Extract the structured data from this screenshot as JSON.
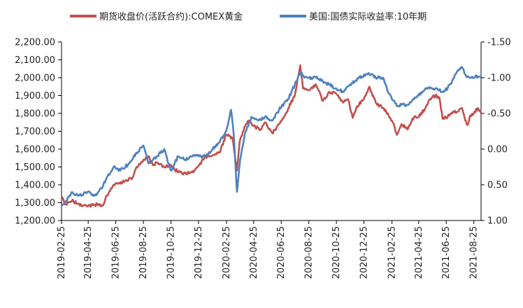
{
  "chart_data": {
    "type": "line",
    "title": "",
    "xlabel": "",
    "legend_position": "top-center",
    "grid": false,
    "x_range": [
      "2019-02-25",
      "2021-09-10"
    ],
    "x_ticks": [
      "2019-02-25",
      "2019-04-25",
      "2019-06-25",
      "2019-08-25",
      "2019-10-25",
      "2019-12-25",
      "2020-02-25",
      "2020-04-25",
      "2020-06-25",
      "2020-08-25",
      "2020-10-25",
      "2020-12-25",
      "2021-02-25",
      "2021-04-25",
      "2021-06-25",
      "2021-08-25"
    ],
    "y_left": {
      "ylim": [
        1200,
        2200
      ],
      "ticks": [
        1200,
        1300,
        1400,
        1500,
        1600,
        1700,
        1800,
        1900,
        2000,
        2100,
        2200
      ],
      "tick_labels": [
        "1,200.00",
        "1,300.00",
        "1,400.00",
        "1,500.00",
        "1,600.00",
        "1,700.00",
        "1,800.00",
        "1,900.00",
        "2,000.00",
        "2,100.00",
        "2,200.00"
      ]
    },
    "y_right": {
      "inverted": true,
      "ylim": [
        1.0,
        -1.5
      ],
      "ticks": [
        1.0,
        0.5,
        0.0,
        -0.5,
        -1.0,
        -1.5
      ],
      "tick_labels": [
        "1.00",
        "0.50",
        "0.00",
        "-0.50",
        "-1.00",
        "-1.50"
      ]
    },
    "series": [
      {
        "name": "期货收盘价(活跃合约):COMEX黄金",
        "axis": "left",
        "color": "#c0504d",
        "points": [
          [
            "2019-02-25",
            1330
          ],
          [
            "2019-03-05",
            1290
          ],
          [
            "2019-03-20",
            1312
          ],
          [
            "2019-04-01",
            1295
          ],
          [
            "2019-04-25",
            1280
          ],
          [
            "2019-05-15",
            1290
          ],
          [
            "2019-05-28",
            1285
          ],
          [
            "2019-06-05",
            1340
          ],
          [
            "2019-06-20",
            1400
          ],
          [
            "2019-07-01",
            1410
          ],
          [
            "2019-07-15",
            1420
          ],
          [
            "2019-08-01",
            1440
          ],
          [
            "2019-08-10",
            1500
          ],
          [
            "2019-08-25",
            1540
          ],
          [
            "2019-09-05",
            1560
          ],
          [
            "2019-09-15",
            1510
          ],
          [
            "2019-09-25",
            1525
          ],
          [
            "2019-10-10",
            1500
          ],
          [
            "2019-10-25",
            1510
          ],
          [
            "2019-11-10",
            1470
          ],
          [
            "2019-11-25",
            1465
          ],
          [
            "2019-12-10",
            1470
          ],
          [
            "2019-12-25",
            1505
          ],
          [
            "2020-01-08",
            1555
          ],
          [
            "2020-01-20",
            1560
          ],
          [
            "2020-02-10",
            1580
          ],
          [
            "2020-02-24",
            1680
          ],
          [
            "2020-03-09",
            1660
          ],
          [
            "2020-03-19",
            1480
          ],
          [
            "2020-03-25",
            1640
          ],
          [
            "2020-04-08",
            1740
          ],
          [
            "2020-04-14",
            1760
          ],
          [
            "2020-04-25",
            1730
          ],
          [
            "2020-05-10",
            1710
          ],
          [
            "2020-05-20",
            1750
          ],
          [
            "2020-06-05",
            1690
          ],
          [
            "2020-06-20",
            1740
          ],
          [
            "2020-07-05",
            1800
          ],
          [
            "2020-07-25",
            1900
          ],
          [
            "2020-08-06",
            2070
          ],
          [
            "2020-08-12",
            1940
          ],
          [
            "2020-08-25",
            1930
          ],
          [
            "2020-09-10",
            1960
          ],
          [
            "2020-09-25",
            1870
          ],
          [
            "2020-10-10",
            1920
          ],
          [
            "2020-10-25",
            1910
          ],
          [
            "2020-11-09",
            1860
          ],
          [
            "2020-11-20",
            1880
          ],
          [
            "2020-11-30",
            1775
          ],
          [
            "2020-12-10",
            1840
          ],
          [
            "2020-12-25",
            1880
          ],
          [
            "2021-01-06",
            1950
          ],
          [
            "2021-01-20",
            1860
          ],
          [
            "2021-02-05",
            1830
          ],
          [
            "2021-02-16",
            1800
          ],
          [
            "2021-03-01",
            1740
          ],
          [
            "2021-03-08",
            1680
          ],
          [
            "2021-03-18",
            1740
          ],
          [
            "2021-03-31",
            1710
          ],
          [
            "2021-04-15",
            1780
          ],
          [
            "2021-04-25",
            1780
          ],
          [
            "2021-05-10",
            1830
          ],
          [
            "2021-05-20",
            1880
          ],
          [
            "2021-06-01",
            1900
          ],
          [
            "2021-06-10",
            1890
          ],
          [
            "2021-06-17",
            1770
          ],
          [
            "2021-06-28",
            1780
          ],
          [
            "2021-07-10",
            1810
          ],
          [
            "2021-07-20",
            1810
          ],
          [
            "2021-07-30",
            1830
          ],
          [
            "2021-08-06",
            1760
          ],
          [
            "2021-08-11",
            1735
          ],
          [
            "2021-08-18",
            1790
          ],
          [
            "2021-08-25",
            1800
          ],
          [
            "2021-09-03",
            1830
          ],
          [
            "2021-09-10",
            1800
          ]
        ]
      },
      {
        "name": "美国:国债实际收益率:10年期",
        "axis": "right",
        "color": "#4f81bd",
        "points": [
          [
            "2019-02-25",
            0.8
          ],
          [
            "2019-03-05",
            0.75
          ],
          [
            "2019-03-20",
            0.6
          ],
          [
            "2019-04-01",
            0.65
          ],
          [
            "2019-04-25",
            0.6
          ],
          [
            "2019-05-10",
            0.65
          ],
          [
            "2019-05-25",
            0.55
          ],
          [
            "2019-06-05",
            0.4
          ],
          [
            "2019-06-20",
            0.25
          ],
          [
            "2019-07-05",
            0.3
          ],
          [
            "2019-07-25",
            0.2
          ],
          [
            "2019-08-10",
            0.05
          ],
          [
            "2019-08-25",
            -0.05
          ],
          [
            "2019-09-05",
            0.2
          ],
          [
            "2019-09-25",
            0.1
          ],
          [
            "2019-10-10",
            0.0
          ],
          [
            "2019-10-25",
            0.3
          ],
          [
            "2019-11-10",
            0.1
          ],
          [
            "2019-11-25",
            0.15
          ],
          [
            "2019-12-10",
            0.1
          ],
          [
            "2019-12-25",
            0.1
          ],
          [
            "2020-01-10",
            0.1
          ],
          [
            "2020-01-25",
            0.0
          ],
          [
            "2020-02-10",
            -0.1
          ],
          [
            "2020-02-24",
            -0.25
          ],
          [
            "2020-03-06",
            -0.55
          ],
          [
            "2020-03-12",
            -0.2
          ],
          [
            "2020-03-19",
            0.6
          ],
          [
            "2020-03-26",
            0.15
          ],
          [
            "2020-04-05",
            -0.2
          ],
          [
            "2020-04-20",
            -0.45
          ],
          [
            "2020-05-05",
            -0.4
          ],
          [
            "2020-05-20",
            -0.45
          ],
          [
            "2020-06-05",
            -0.4
          ],
          [
            "2020-06-20",
            -0.55
          ],
          [
            "2020-07-10",
            -0.7
          ],
          [
            "2020-07-25",
            -0.9
          ],
          [
            "2020-08-06",
            -1.08
          ],
          [
            "2020-08-15",
            -1.0
          ],
          [
            "2020-08-25",
            -1.0
          ],
          [
            "2020-09-10",
            -1.0
          ],
          [
            "2020-09-25",
            -0.95
          ],
          [
            "2020-10-10",
            -0.9
          ],
          [
            "2020-10-25",
            -0.85
          ],
          [
            "2020-11-09",
            -0.8
          ],
          [
            "2020-11-20",
            -0.88
          ],
          [
            "2020-12-05",
            -0.95
          ],
          [
            "2020-12-20",
            -1.02
          ],
          [
            "2021-01-06",
            -1.05
          ],
          [
            "2021-01-20",
            -1.0
          ],
          [
            "2021-02-05",
            -1.0
          ],
          [
            "2021-02-16",
            -0.8
          ],
          [
            "2021-02-25",
            -0.7
          ],
          [
            "2021-03-08",
            -0.6
          ],
          [
            "2021-03-18",
            -0.62
          ],
          [
            "2021-03-31",
            -0.62
          ],
          [
            "2021-04-15",
            -0.7
          ],
          [
            "2021-04-25",
            -0.75
          ],
          [
            "2021-05-10",
            -0.85
          ],
          [
            "2021-05-25",
            -0.85
          ],
          [
            "2021-06-05",
            -0.85
          ],
          [
            "2021-06-17",
            -0.8
          ],
          [
            "2021-06-28",
            -0.85
          ],
          [
            "2021-07-08",
            -0.95
          ],
          [
            "2021-07-20",
            -1.1
          ],
          [
            "2021-07-30",
            -1.15
          ],
          [
            "2021-08-06",
            -1.05
          ],
          [
            "2021-08-15",
            -1.0
          ],
          [
            "2021-08-25",
            -1.0
          ],
          [
            "2021-09-03",
            -1.02
          ],
          [
            "2021-09-10",
            -1.0
          ]
        ]
      }
    ]
  }
}
